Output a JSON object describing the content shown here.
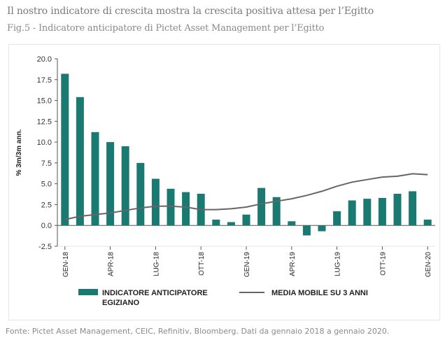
{
  "header": {
    "title": "Il nostro indicatore di crescita mostra la crescita positiva attesa per l’Egitto",
    "subtitle": "Fig.5 - Indicatore anticipatore di Pictet Asset Management per l’Egitto"
  },
  "footer": {
    "source": "Fonte: Pictet Asset Management, CEIC, Refinitiv, Bloomberg. Dati da gennaio 2018 a gennaio 2020."
  },
  "colors": {
    "bars": "#1a7a72",
    "line": "#666666",
    "axis": "#555555"
  },
  "chart_data": {
    "type": "bar",
    "ylabel": "% 3m/3m ann.",
    "ylim": [
      -2.5,
      20
    ],
    "yticks": [
      "20.0",
      "17.5",
      "15.0",
      "12.5",
      "10.0",
      "7.5",
      "5.0",
      "2.5",
      "0.0",
      "-2.5"
    ],
    "ytick_values": [
      20,
      17.5,
      15,
      12.5,
      10,
      7.5,
      5,
      2.5,
      0,
      -2.5
    ],
    "xtick_labels": [
      "GEN-18",
      "APR-18",
      "LUG-18",
      "OTT-18",
      "GEN-19",
      "APR-19",
      "LUG-19",
      "OTT-19",
      "GEN-20"
    ],
    "xtick_indices": [
      0,
      3,
      6,
      9,
      12,
      15,
      18,
      21,
      24
    ],
    "series": [
      {
        "name": "INDICATORE ANTICIPATORE EGIZIANO",
        "type": "bar",
        "values": [
          18.2,
          15.4,
          11.2,
          10.0,
          9.5,
          7.5,
          5.6,
          4.4,
          4.0,
          3.8,
          0.7,
          0.4,
          1.3,
          4.5,
          3.4,
          0.5,
          -1.2,
          -0.7,
          1.7,
          3.0,
          3.2,
          3.3,
          3.8,
          4.1,
          0.7
        ]
      },
      {
        "name": "MEDIA MOBILE SU 3 ANNI",
        "type": "line",
        "values": [
          0.7,
          1.1,
          1.3,
          1.5,
          1.8,
          2.1,
          2.3,
          2.3,
          2.2,
          1.9,
          1.9,
          2.0,
          2.2,
          2.6,
          2.9,
          3.2,
          3.6,
          4.1,
          4.7,
          5.2,
          5.5,
          5.8,
          5.9,
          6.2,
          6.1
        ]
      }
    ],
    "legend_position": "bottom",
    "grid": false
  }
}
